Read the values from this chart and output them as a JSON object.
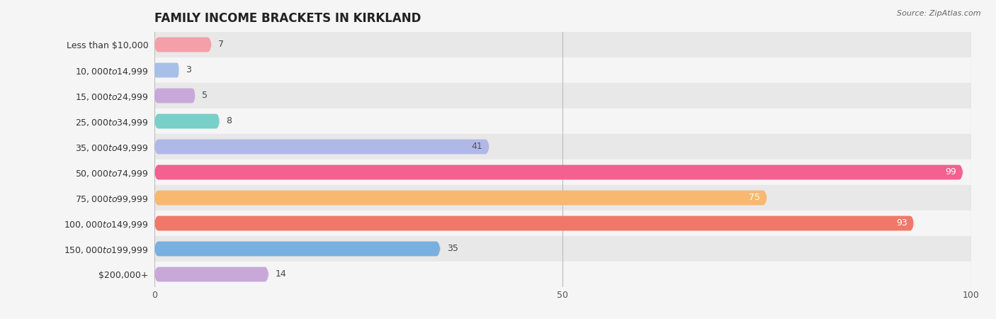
{
  "title": "FAMILY INCOME BRACKETS IN KIRKLAND",
  "source": "Source: ZipAtlas.com",
  "categories": [
    "Less than $10,000",
    "$10,000 to $14,999",
    "$15,000 to $24,999",
    "$25,000 to $34,999",
    "$35,000 to $49,999",
    "$50,000 to $74,999",
    "$75,000 to $99,999",
    "$100,000 to $149,999",
    "$150,000 to $199,999",
    "$200,000+"
  ],
  "values": [
    7,
    3,
    5,
    8,
    41,
    99,
    75,
    93,
    35,
    14
  ],
  "bar_colors": [
    "#F4A0A8",
    "#A8C0E8",
    "#C8A8D8",
    "#78D0C8",
    "#B0B8E8",
    "#F46090",
    "#F8B870",
    "#F07868",
    "#78B0E0",
    "#C8A8D8"
  ],
  "label_colors": [
    "#555555",
    "#555555",
    "#555555",
    "#555555",
    "#555555",
    "white",
    "white",
    "white",
    "#555555",
    "#555555"
  ],
  "xlim": [
    0,
    100
  ],
  "background_color": "#f0f0f0",
  "row_bg_even": "#e8e8e8",
  "row_bg_odd": "#f5f5f5",
  "title_fontsize": 12,
  "label_fontsize": 9,
  "value_fontsize": 9
}
